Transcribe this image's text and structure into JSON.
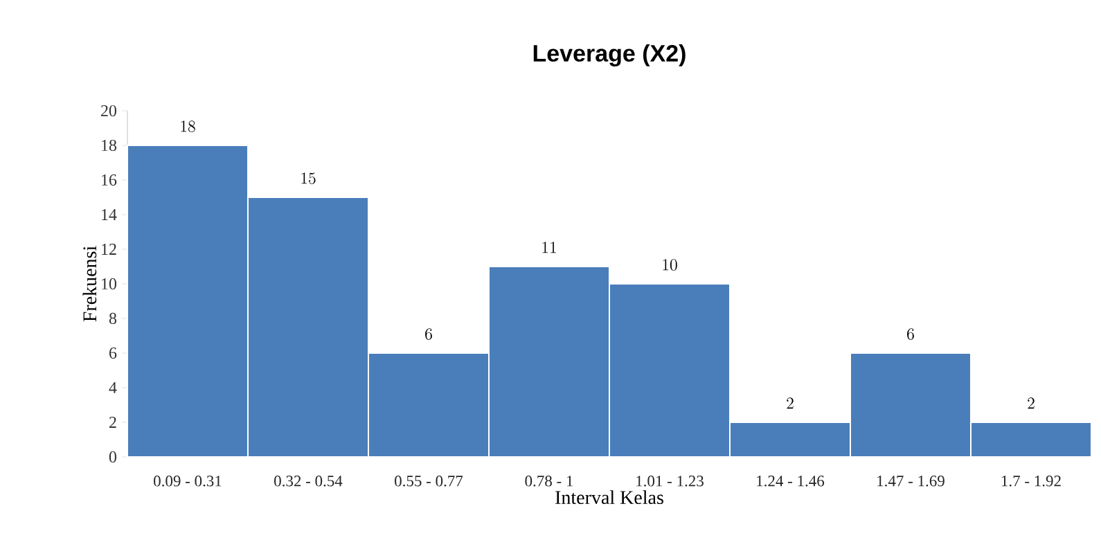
{
  "chart_data": {
    "type": "bar",
    "title": "Leverage (X2)",
    "xlabel": "Interval Kelas",
    "ylabel": "Frekuensi",
    "categories": [
      "0.09 - 0.31",
      "0.32 - 0.54",
      "0.55 - 0.77",
      "0.78 - 1",
      "1.01 - 1.23",
      "1.24 - 1.46",
      "1.47 - 1.69",
      "1.7 - 1.92"
    ],
    "values": [
      18,
      15,
      6,
      11,
      10,
      2,
      6,
      2
    ],
    "color": "#4a7ebb",
    "ylim": [
      0,
      20
    ],
    "yticks": [
      0,
      2,
      4,
      6,
      8,
      10,
      12,
      14,
      16,
      18,
      20
    ],
    "grid": false,
    "data_labels": true
  }
}
